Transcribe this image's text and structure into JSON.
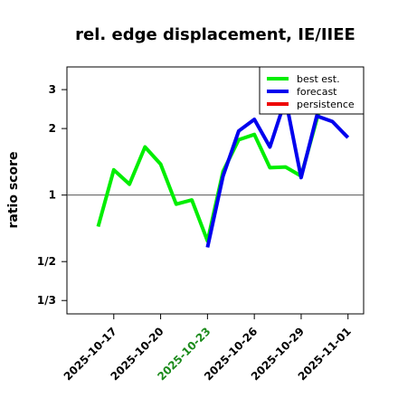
{
  "chart_data": {
    "type": "line",
    "title": "rel. edge displacement, IE/IIEE",
    "xlabel": "",
    "ylabel": "ratio score",
    "y_scale": "log",
    "ylim": [
      0.29,
      3.8
    ],
    "y_ticks": [
      {
        "value": 0.3333,
        "label": "1/3"
      },
      {
        "value": 0.5,
        "label": "1/2"
      },
      {
        "value": 1,
        "label": "1"
      },
      {
        "value": 2,
        "label": "2"
      },
      {
        "value": 3,
        "label": "3"
      }
    ],
    "reference_line": 1,
    "x_ticks": [
      {
        "date": "2025-10-17",
        "label": "2025-10-17",
        "color": "#000000"
      },
      {
        "date": "2025-10-20",
        "label": "2025-10-20",
        "color": "#000000"
      },
      {
        "date": "2025-10-23",
        "label": "2025-10-23",
        "color": "#1a8a1a"
      },
      {
        "date": "2025-10-26",
        "label": "2025-10-26",
        "color": "#000000"
      },
      {
        "date": "2025-10-29",
        "label": "2025-10-29",
        "color": "#000000"
      },
      {
        "date": "2025-11-01",
        "label": "2025-11-01",
        "color": "#000000"
      }
    ],
    "xlim": [
      "2025-10-14",
      "2025-11-02"
    ],
    "legend_position": "top-right",
    "series": [
      {
        "name": "best est.",
        "color": "#00ee00",
        "points": [
          {
            "x": "2025-10-16",
            "y": 0.72
          },
          {
            "x": "2025-10-17",
            "y": 1.3
          },
          {
            "x": "2025-10-18",
            "y": 1.12
          },
          {
            "x": "2025-10-19",
            "y": 1.65
          },
          {
            "x": "2025-10-20",
            "y": 1.38
          },
          {
            "x": "2025-10-21",
            "y": 0.91
          },
          {
            "x": "2025-10-22",
            "y": 0.95
          },
          {
            "x": "2025-10-23",
            "y": 0.62
          },
          {
            "x": "2025-10-24",
            "y": 1.28
          },
          {
            "x": "2025-10-25",
            "y": 1.78
          },
          {
            "x": "2025-10-26",
            "y": 1.88
          },
          {
            "x": "2025-10-27",
            "y": 1.33
          },
          {
            "x": "2025-10-28",
            "y": 1.34
          },
          {
            "x": "2025-10-29",
            "y": 1.22
          },
          {
            "x": "2025-10-30",
            "y": 2.2
          },
          {
            "x": "2025-10-31",
            "y": 3.9
          }
        ]
      },
      {
        "name": "forecast",
        "color": "#0000ee",
        "points": [
          {
            "x": "2025-10-23",
            "y": 0.58
          },
          {
            "x": "2025-10-24",
            "y": 1.22
          },
          {
            "x": "2025-10-25",
            "y": 1.95
          },
          {
            "x": "2025-10-26",
            "y": 2.2
          },
          {
            "x": "2025-10-27",
            "y": 1.65
          },
          {
            "x": "2025-10-28",
            "y": 2.72
          },
          {
            "x": "2025-10-29",
            "y": 1.2
          },
          {
            "x": "2025-10-30",
            "y": 2.28
          },
          {
            "x": "2025-10-31",
            "y": 2.15
          },
          {
            "x": "2025-11-01",
            "y": 1.82
          }
        ]
      },
      {
        "name": "persistence",
        "color": "#ee0000",
        "points": []
      }
    ]
  }
}
